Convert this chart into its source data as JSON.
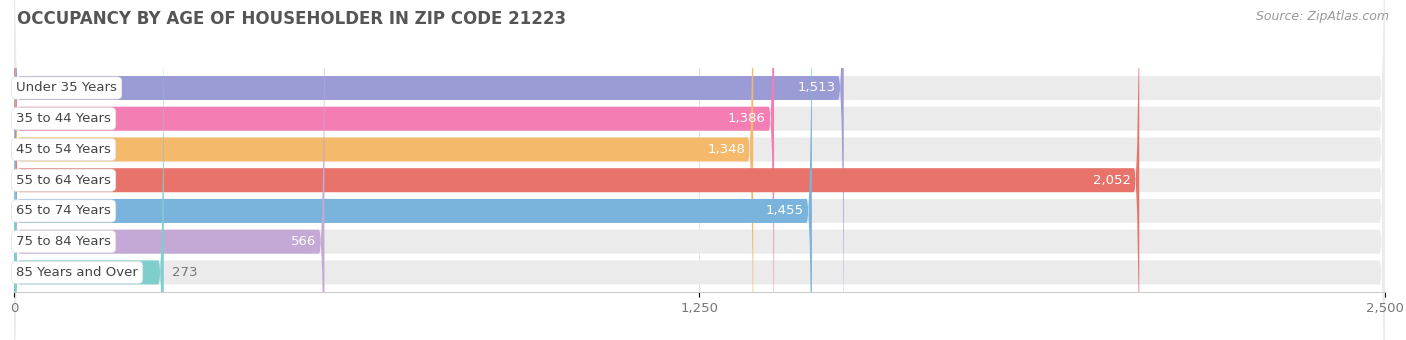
{
  "title": "OCCUPANCY BY AGE OF HOUSEHOLDER IN ZIP CODE 21223",
  "source": "Source: ZipAtlas.com",
  "categories": [
    "Under 35 Years",
    "35 to 44 Years",
    "45 to 54 Years",
    "55 to 64 Years",
    "65 to 74 Years",
    "75 to 84 Years",
    "85 Years and Over"
  ],
  "values": [
    1513,
    1386,
    1348,
    2052,
    1455,
    566,
    273
  ],
  "bar_colors": [
    "#9b9bd6",
    "#f47db3",
    "#f5b96b",
    "#e8736a",
    "#7ab4dc",
    "#c4a8d5",
    "#7ecece"
  ],
  "xlim": [
    0,
    2500
  ],
  "xticks": [
    0,
    1250,
    2500
  ],
  "background_color": "#ffffff",
  "bar_bg_color": "#ebebeb",
  "title_fontsize": 12,
  "label_fontsize": 9.5,
  "value_fontsize": 9.5,
  "source_fontsize": 9
}
